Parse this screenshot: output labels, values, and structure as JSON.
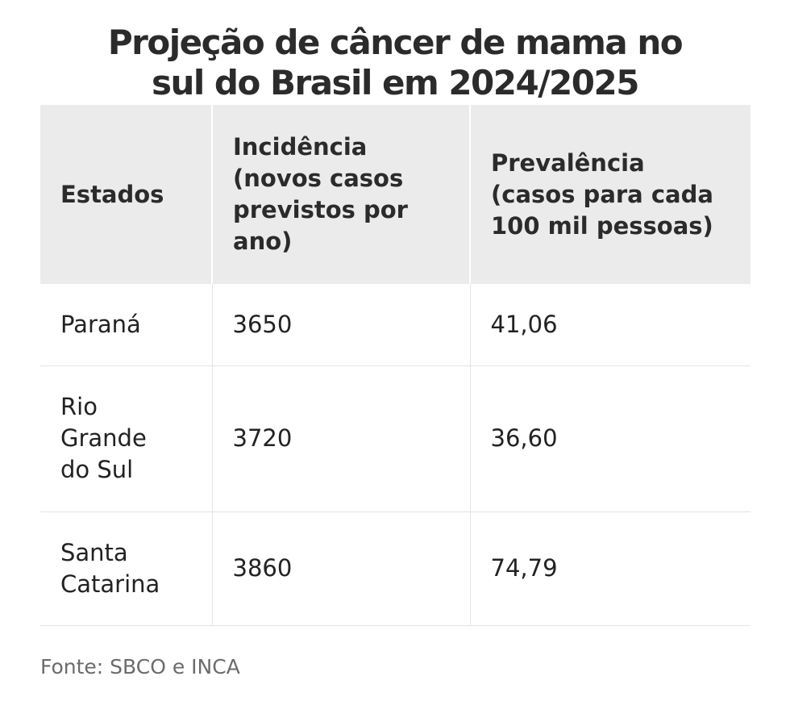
{
  "title_lines": [
    "Projeção de câncer de mama no",
    "sul do Brasil em 2024/2025"
  ],
  "chart_data": {
    "type": "table",
    "columns": [
      [
        "Estados"
      ],
      [
        "Incidência",
        "(novos casos",
        "previstos por",
        "ano)"
      ],
      [
        "Prevalência",
        "(casos para cada",
        "100 mil pessoas)"
      ]
    ],
    "rows": [
      {
        "estado": [
          "Paraná"
        ],
        "incidencia": "3650",
        "prevalencia": "41,06"
      },
      {
        "estado": [
          "Rio",
          "Grande",
          "do Sul"
        ],
        "incidencia": "3720",
        "prevalencia": "36,60"
      },
      {
        "estado": [
          "Santa",
          "Catarina"
        ],
        "incidencia": "3860",
        "prevalencia": "74,79"
      }
    ]
  },
  "source": "Fonte: SBCO e INCA",
  "colors": {
    "header_background": "#ebebeb",
    "text": "#222222",
    "source_text": "#6b6b6b",
    "grid_line": "#e4e4e4"
  }
}
